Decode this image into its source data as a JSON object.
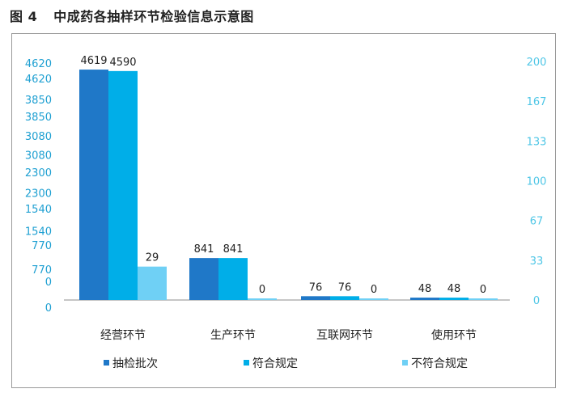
{
  "figure": {
    "label": "图 4",
    "title": "中成药各抽样环节检验信息示意图"
  },
  "colors": {
    "series": [
      "#1f78c8",
      "#00aee8",
      "#6fd0f5"
    ],
    "axis_left": "#1fa0d2",
    "axis_right": "#4ec6e6",
    "baseline": "#8c8c8c",
    "text": "#222222"
  },
  "chart_data": {
    "type": "bar",
    "categories": [
      "经营环节",
      "生产环节",
      "互联网环节",
      "使用环节"
    ],
    "series": [
      {
        "name": "抽检批次",
        "values": [
          4619,
          841,
          76,
          48
        ],
        "axis": "left"
      },
      {
        "name": "符合规定",
        "values": [
          4590,
          841,
          76,
          48
        ],
        "axis": "left"
      },
      {
        "name": "不符合规定",
        "values": [
          29,
          0,
          0,
          0
        ],
        "axis": "right"
      }
    ],
    "y_left": {
      "ylim": [
        0,
        4620
      ],
      "ticks_a": [
        "4620",
        "3850",
        "3080",
        "2300",
        "1540",
        "770",
        "0"
      ],
      "ticks_b": [
        "4620",
        "3850",
        "3080",
        "2300",
        "1540",
        "770",
        "0"
      ]
    },
    "y_right": {
      "ylim": [
        0,
        200
      ],
      "ticks": [
        "200",
        "167",
        "133",
        "100",
        "67",
        "33",
        "0"
      ]
    },
    "data_labels": [
      [
        "4619",
        "4590",
        "29"
      ],
      [
        "841",
        "841",
        "0"
      ],
      [
        "76",
        "76",
        "0"
      ],
      [
        "48",
        "48",
        "0"
      ]
    ],
    "legend_position": "bottom",
    "grid": false
  }
}
